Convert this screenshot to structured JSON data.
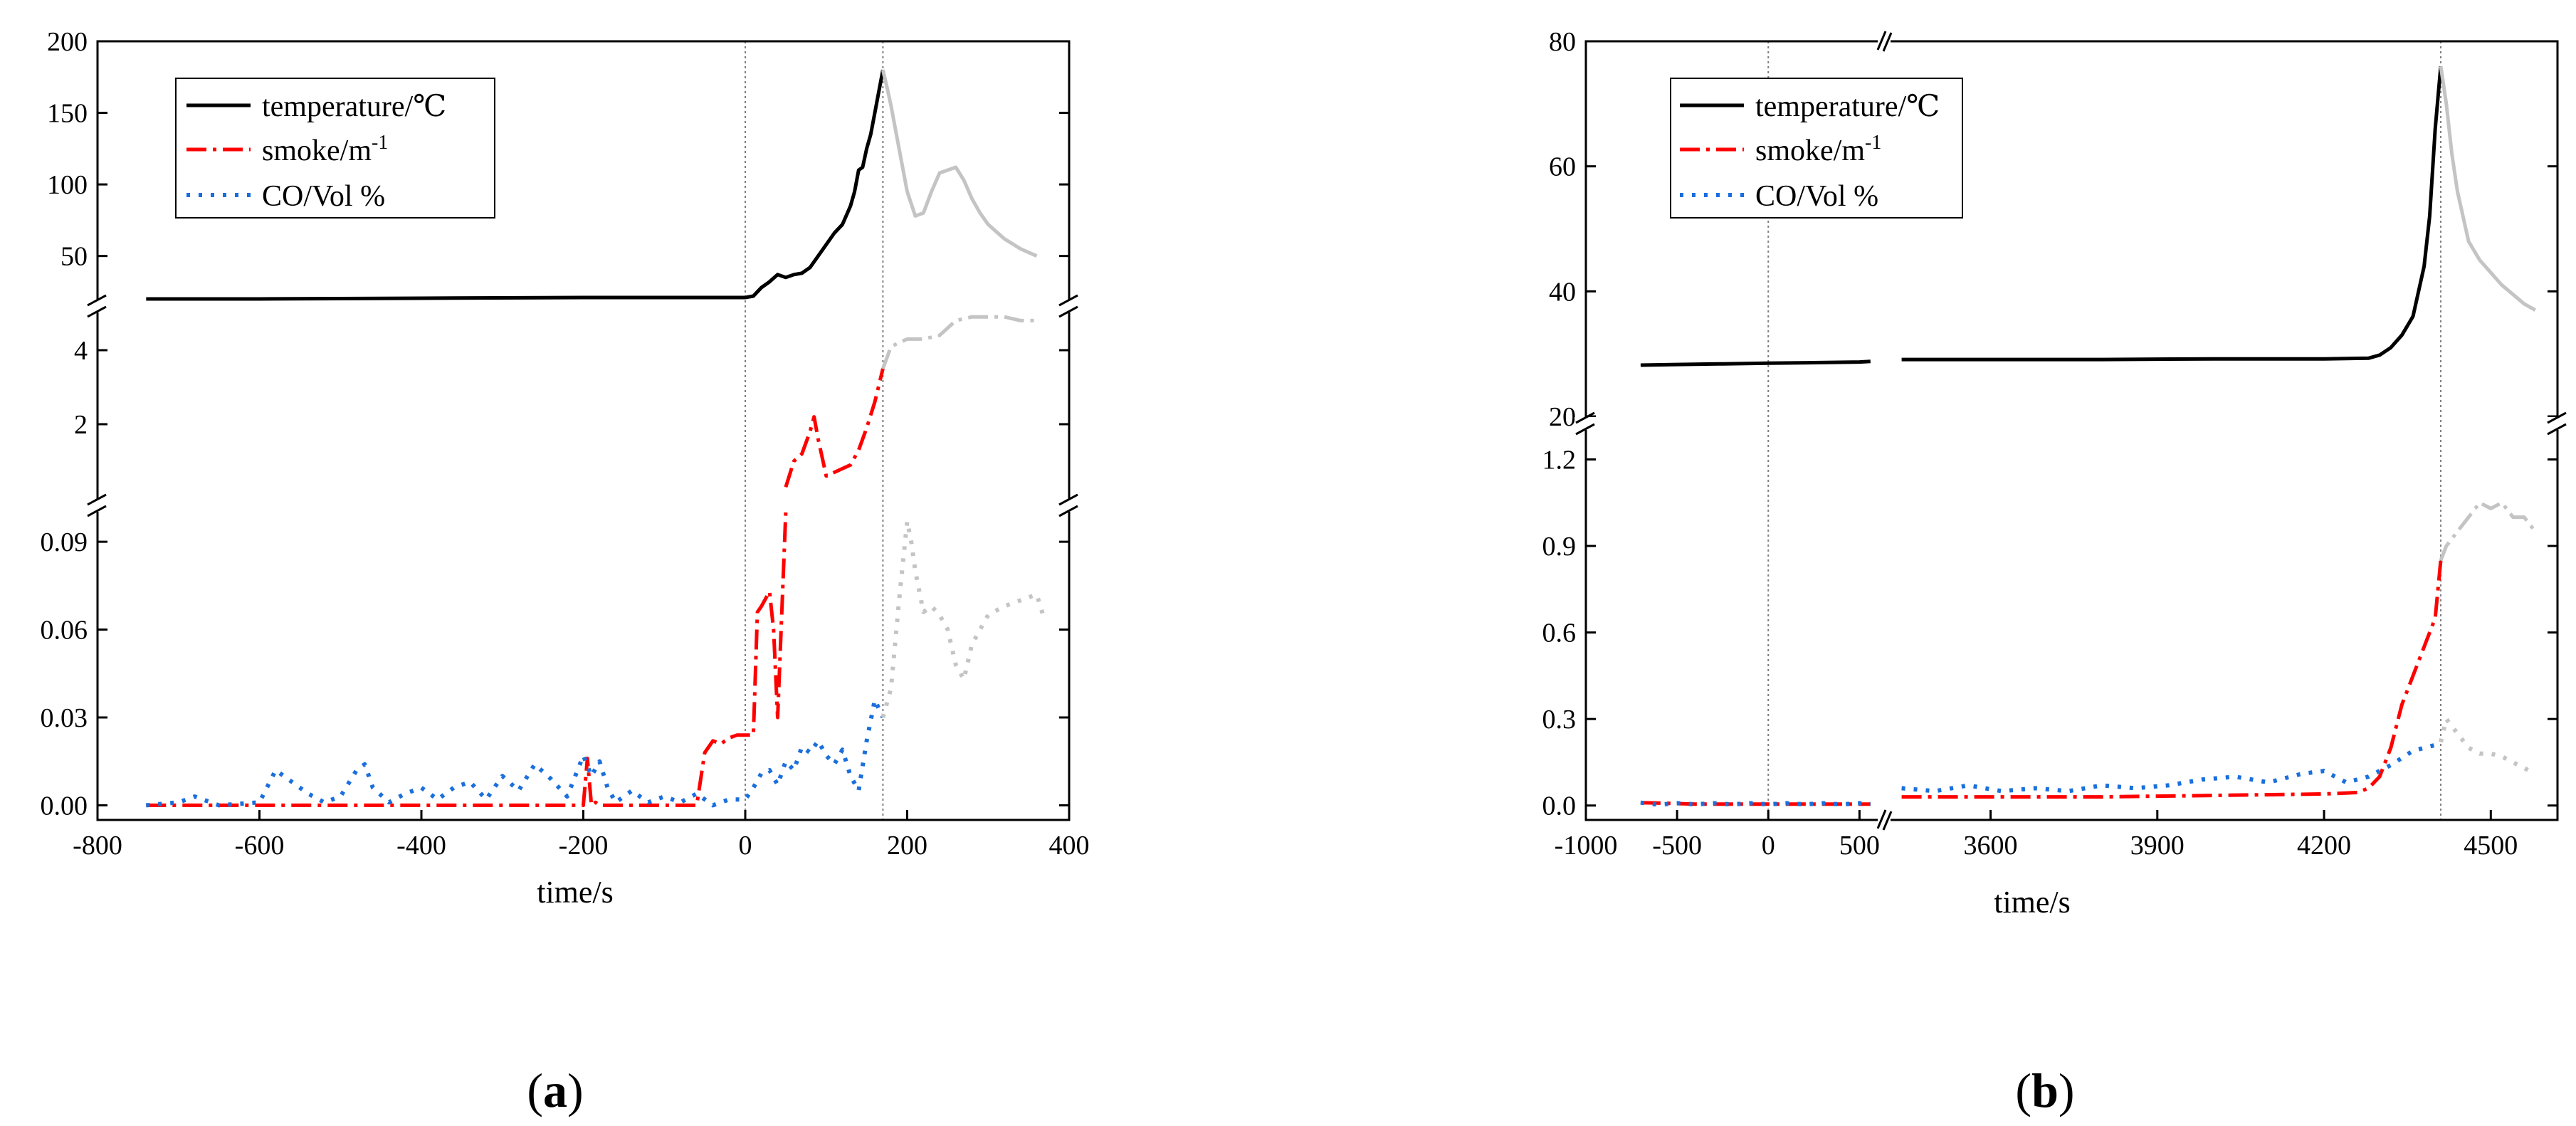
{
  "colors": {
    "temperature": "#000000",
    "smoke": "#ff0000",
    "co": "#1a6fdc",
    "after_peak": "#c4c4c4",
    "marker_line": "#7f7f7f"
  },
  "chart_data": [
    {
      "panel_label": "a",
      "type": "line",
      "xlabel": "time/s",
      "xlim": [
        -800,
        400
      ],
      "x_ticks": [
        "-800",
        "-600",
        "-400",
        "-200",
        "0",
        "200",
        "400"
      ],
      "markers_x": [
        0,
        170
      ],
      "legend": {
        "placement": "top-left",
        "entries": [
          "temperature/℃",
          "smoke/m",
          "CO/Vol %"
        ],
        "smoke_superscript": "-1"
      },
      "y_segments": [
        {
          "name": "temperature",
          "range": [
            20,
            200
          ],
          "ticks": [
            "50",
            "100",
            "150",
            "200"
          ]
        },
        {
          "name": "smoke",
          "range": [
            0,
            5
          ],
          "ticks": [
            "2",
            "4"
          ]
        },
        {
          "name": "co",
          "range": [
            -0.005,
            0.1
          ],
          "ticks": [
            "0.00",
            "0.03",
            "0.06",
            "0.09"
          ]
        }
      ],
      "series": [
        {
          "key": "temperature",
          "segment": 0,
          "peak_x": 170,
          "x": [
            -740,
            -600,
            -400,
            -200,
            -100,
            0,
            10,
            20,
            30,
            40,
            50,
            60,
            70,
            80,
            90,
            100,
            110,
            120,
            130,
            135,
            140,
            145,
            150,
            155,
            160,
            165,
            170,
            175,
            180,
            190,
            200,
            210,
            220,
            230,
            240,
            250,
            260,
            270,
            280,
            290,
            300,
            320,
            340,
            360
          ],
          "y": [
            20,
            20,
            20.5,
            21,
            21,
            21,
            22,
            28,
            32,
            37,
            35,
            37,
            38,
            42,
            50,
            58,
            66,
            72,
            85,
            95,
            110,
            112,
            125,
            135,
            150,
            165,
            180,
            168,
            155,
            125,
            95,
            78,
            80,
            95,
            108,
            110,
            112,
            103,
            90,
            80,
            72,
            62,
            55,
            50
          ]
        },
        {
          "key": "smoke",
          "segment": 1,
          "peak_x": 170,
          "x": [
            50,
            60,
            70,
            80,
            85,
            90,
            100,
            110,
            120,
            130,
            140,
            150,
            160,
            170,
            180,
            200,
            220,
            240,
            260,
            280,
            300,
            320,
            340,
            360
          ],
          "y": [
            0.3,
            1.0,
            1.2,
            1.8,
            2.2,
            1.6,
            0.6,
            0.7,
            0.8,
            0.9,
            1.3,
            1.9,
            2.6,
            3.5,
            4.1,
            4.3,
            4.3,
            4.4,
            4.8,
            4.9,
            4.9,
            4.9,
            4.8,
            4.8
          ]
        },
        {
          "key": "smoke",
          "segment": 2,
          "peak_x": 1000,
          "x": [
            -740,
            -600,
            -400,
            -200,
            -195,
            -190,
            -185,
            -180,
            -60,
            -50,
            -40,
            -30,
            -20,
            -10,
            0,
            10,
            15,
            20,
            30,
            35,
            40,
            45,
            50
          ],
          "y": [
            0,
            0,
            0,
            0,
            0.016,
            0,
            0.001,
            0,
            0,
            0.018,
            0.022,
            0.021,
            0.023,
            0.024,
            0.024,
            0.024,
            0.066,
            0.068,
            0.073,
            0.06,
            0.03,
            0.065,
            0.1
          ]
        },
        {
          "key": "co",
          "segment": 2,
          "peak_x": 170,
          "x": [
            -740,
            -700,
            -680,
            -650,
            -600,
            -580,
            -560,
            -540,
            -520,
            -500,
            -480,
            -470,
            -460,
            -440,
            -420,
            -400,
            -380,
            -360,
            -340,
            -320,
            -300,
            -280,
            -260,
            -240,
            -220,
            -200,
            -190,
            -180,
            -170,
            -160,
            -140,
            -120,
            -100,
            -80,
            -60,
            -40,
            -20,
            0,
            10,
            20,
            30,
            40,
            50,
            60,
            70,
            80,
            90,
            100,
            110,
            120,
            130,
            140,
            150,
            160,
            170,
            180,
            190,
            200,
            205,
            210,
            220,
            230,
            240,
            250,
            260,
            270,
            280,
            290,
            300,
            320,
            340,
            360,
            370
          ],
          "y": [
            0,
            0.001,
            0.003,
            0,
            0.001,
            0.012,
            0.008,
            0.004,
            0.001,
            0.003,
            0.012,
            0.014,
            0.006,
            0.001,
            0.004,
            0.006,
            0.002,
            0.006,
            0.008,
            0.002,
            0.01,
            0.005,
            0.014,
            0.009,
            0.003,
            0.017,
            0.01,
            0.015,
            0.006,
            0.001,
            0.005,
            0.001,
            0.003,
            0.001,
            0.004,
            0,
            0.002,
            0.002,
            0.006,
            0.011,
            0.012,
            0.007,
            0.015,
            0.012,
            0.02,
            0.018,
            0.022,
            0.017,
            0.014,
            0.019,
            0.01,
            0.005,
            0.022,
            0.036,
            0.03,
            0.04,
            0.07,
            0.097,
            0.09,
            0.08,
            0.066,
            0.068,
            0.065,
            0.06,
            0.048,
            0.043,
            0.055,
            0.06,
            0.065,
            0.068,
            0.07,
            0.072,
            0.063
          ]
        }
      ]
    },
    {
      "panel_label": "b",
      "type": "line",
      "xlabel": "time/s",
      "x_ticks": [
        "-1000",
        "-500",
        "0",
        "500",
        "3600",
        "3900",
        "4200",
        "4500"
      ],
      "x_segments": [
        {
          "range": [
            -1000,
            600
          ]
        },
        {
          "range": [
            3420,
            4620
          ]
        }
      ],
      "markers_x": [
        0,
        4410
      ],
      "legend": {
        "placement": "top-left",
        "entries": [
          "temperature/℃",
          "smoke/m",
          "CO/Vol %"
        ],
        "smoke_superscript": "-1"
      },
      "y_segments": [
        {
          "name": "temperature",
          "range": [
            20,
            80
          ],
          "ticks": [
            "20",
            "40",
            "60",
            "80"
          ]
        },
        {
          "name": "smoke-co",
          "range": [
            -0.05,
            1.3
          ],
          "ticks": [
            "0.0",
            "0.3",
            "0.6",
            "0.9",
            "1.2"
          ]
        }
      ],
      "series": [
        {
          "key": "temperature",
          "segment": 0,
          "peak_x": 99999,
          "x": [
            -700,
            -500,
            -250,
            0,
            250,
            500,
            560
          ],
          "y": [
            28.2,
            28.3,
            28.4,
            28.5,
            28.6,
            28.7,
            28.8
          ]
        },
        {
          "key": "temperature",
          "segment": 0,
          "peak_x": 4410,
          "x": [
            3440,
            3600,
            3800,
            4000,
            4200,
            4280,
            4300,
            4320,
            4340,
            4360,
            4380,
            4390,
            4400,
            4410,
            4420,
            4430,
            4440,
            4460,
            4480,
            4500,
            4520,
            4540,
            4560,
            4580
          ],
          "y": [
            29.1,
            29.1,
            29.1,
            29.2,
            29.2,
            29.3,
            29.8,
            31,
            33,
            36,
            44,
            52,
            66,
            76,
            70,
            62,
            56,
            48,
            45,
            43,
            41,
            39.5,
            38,
            37
          ]
        },
        {
          "key": "smoke",
          "segment": 1,
          "peak_x": 99999,
          "x": [
            -700,
            -400,
            0,
            300,
            560
          ],
          "y": [
            0.01,
            0.005,
            0.005,
            0.005,
            0.005
          ]
        },
        {
          "key": "smoke",
          "segment": 1,
          "peak_x": 4410,
          "x": [
            3440,
            3600,
            3800,
            4000,
            4200,
            4260,
            4280,
            4300,
            4320,
            4340,
            4360,
            4380,
            4400,
            4410,
            4420,
            4440,
            4460,
            4480,
            4500,
            4520,
            4540,
            4560,
            4580
          ],
          "y": [
            0.03,
            0.03,
            0.03,
            0.035,
            0.04,
            0.045,
            0.06,
            0.1,
            0.2,
            0.35,
            0.45,
            0.55,
            0.65,
            0.85,
            0.9,
            0.95,
            1.0,
            1.05,
            1.03,
            1.05,
            1.0,
            1.0,
            0.95
          ]
        },
        {
          "key": "co",
          "segment": 1,
          "peak_x": 99999,
          "x": [
            -700,
            -600,
            -500,
            -400,
            -300,
            -200,
            -100,
            0,
            100,
            200,
            300,
            400,
            500,
            560
          ],
          "y": [
            0.01,
            0.003,
            0.008,
            0.004,
            0.008,
            0.004,
            0.008,
            0.004,
            0.008,
            0.004,
            0.008,
            0.004,
            0.008,
            0.005
          ]
        },
        {
          "key": "co",
          "segment": 1,
          "peak_x": 4410,
          "x": [
            3440,
            3500,
            3560,
            3620,
            3680,
            3740,
            3800,
            3860,
            3920,
            3980,
            4040,
            4100,
            4160,
            4200,
            4240,
            4280,
            4320,
            4360,
            4400,
            4410,
            4420,
            4440,
            4460,
            4480,
            4500,
            4520,
            4540,
            4560,
            4580
          ],
          "y": [
            0.06,
            0.05,
            0.07,
            0.05,
            0.06,
            0.05,
            0.07,
            0.06,
            0.07,
            0.09,
            0.1,
            0.08,
            0.11,
            0.12,
            0.08,
            0.1,
            0.14,
            0.19,
            0.21,
            0.22,
            0.3,
            0.25,
            0.2,
            0.18,
            0.18,
            0.17,
            0.15,
            0.13,
            0.11
          ]
        }
      ]
    }
  ]
}
